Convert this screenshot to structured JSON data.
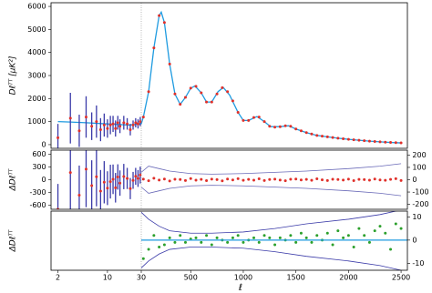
{
  "chart_data": {
    "type": "spectrum-panels",
    "xlabel": "ℓ",
    "xlim": [
      1.6,
      2560
    ],
    "x_log_below": 30,
    "xticks": [
      2,
      10,
      30,
      500,
      1000,
      1500,
      2000,
      2500
    ],
    "panels": [
      {
        "ylabel": "Dℓᵀᵀ [μK²]",
        "ylim": [
          -160,
          6160
        ],
        "yticks": [
          0,
          1000,
          2000,
          3000,
          4000,
          5000,
          6000
        ],
        "model": {
          "color": "#1f9be0",
          "l": [
            2,
            3,
            5,
            10,
            20,
            30,
            50,
            100,
            150,
            200,
            220,
            250,
            300,
            350,
            400,
            450,
            500,
            540,
            600,
            650,
            700,
            760,
            810,
            870,
            950,
            1000,
            1050,
            1130,
            1200,
            1260,
            1350,
            1430,
            1500,
            1600,
            1700,
            1800,
            1900,
            2000,
            2100,
            2200,
            2300,
            2400,
            2500
          ],
          "values": [
            1000,
            980,
            950,
            900,
            850,
            900,
            1200,
            2300,
            4200,
            5600,
            5750,
            5300,
            3500,
            2200,
            1750,
            2050,
            2450,
            2550,
            2250,
            1850,
            1850,
            2300,
            2480,
            2150,
            1400,
            1050,
            1050,
            1220,
            1000,
            780,
            780,
            820,
            680,
            520,
            400,
            340,
            280,
            230,
            190,
            150,
            120,
            95,
            75
          ]
        },
        "low": {
          "color": "#3a3aa8",
          "point_color": "#e0302a",
          "l": [
            2,
            3,
            4,
            5,
            6,
            7,
            8,
            9,
            10,
            11,
            12,
            13,
            14,
            15,
            17,
            19,
            21,
            23,
            25,
            27,
            29
          ],
          "values": [
            300,
            1150,
            600,
            1200,
            800,
            1000,
            650,
            850,
            700,
            850,
            900,
            700,
            950,
            800,
            950,
            900,
            650,
            850,
            950,
            900,
            1000
          ],
          "errors": [
            600,
            1100,
            700,
            900,
            600,
            700,
            500,
            500,
            400,
            400,
            350,
            350,
            300,
            300,
            300,
            250,
            250,
            200,
            200,
            200,
            200
          ]
        },
        "high": {
          "color": "#e0302a",
          "l": [
            50,
            100,
            150,
            200,
            250,
            300,
            350,
            400,
            450,
            500,
            550,
            600,
            650,
            700,
            750,
            800,
            850,
            900,
            950,
            1000,
            1050,
            1100,
            1150,
            1200,
            1250,
            1300,
            1350,
            1400,
            1450,
            1500,
            1550,
            1600,
            1650,
            1700,
            1750,
            1800,
            1850,
            1900,
            1950,
            2000,
            2050,
            2100,
            2150,
            2200,
            2250,
            2300,
            2350,
            2400,
            2450,
            2500
          ],
          "values": [
            1200,
            2300,
            4200,
            5600,
            5300,
            3500,
            2200,
            1750,
            2050,
            2450,
            2530,
            2250,
            1850,
            1850,
            2200,
            2470,
            2300,
            1900,
            1400,
            1050,
            1050,
            1180,
            1200,
            1000,
            800,
            760,
            780,
            820,
            800,
            680,
            600,
            520,
            460,
            400,
            370,
            340,
            310,
            280,
            255,
            230,
            210,
            190,
            170,
            150,
            135,
            120,
            108,
            95,
            85,
            75
          ]
        }
      },
      {
        "ylabel": "ΔDℓᵀᵀ",
        "ylim": [
          -700,
          700
        ],
        "yticks": [
          -600,
          -300,
          0,
          300,
          600
        ],
        "y2lim": [
          -240,
          240
        ],
        "y2ticks": [
          -200,
          -100,
          0,
          100,
          200
        ],
        "low": {
          "color": "#3a3aa8",
          "point_color": "#e0302a",
          "l": [
            2,
            3,
            4,
            5,
            6,
            7,
            8,
            9,
            10,
            11,
            12,
            13,
            14,
            15,
            17,
            19,
            21,
            23,
            25,
            27,
            29
          ],
          "values": [
            -700,
            170,
            -365,
            250,
            -140,
            70,
            -270,
            -60,
            -200,
            -45,
            10,
            -190,
            65,
            -80,
            75,
            30,
            -210,
            -15,
            80,
            30,
            110
          ],
          "errors": [
            600,
            1100,
            700,
            900,
            600,
            700,
            500,
            500,
            400,
            400,
            350,
            350,
            300,
            300,
            300,
            250,
            250,
            200,
            200,
            200,
            200
          ]
        },
        "high": {
          "color": "#e0302a",
          "axis": "y2",
          "l": [
            50,
            100,
            150,
            200,
            250,
            300,
            350,
            400,
            450,
            500,
            550,
            600,
            650,
            700,
            750,
            800,
            850,
            900,
            950,
            1000,
            1050,
            1100,
            1150,
            1200,
            1250,
            1300,
            1350,
            1400,
            1450,
            1500,
            1550,
            1600,
            1650,
            1700,
            1750,
            1800,
            1850,
            1900,
            1950,
            2000,
            2050,
            2100,
            2150,
            2200,
            2250,
            2300,
            2350,
            2400,
            2450,
            2500
          ],
          "values": [
            5,
            -8,
            12,
            -3,
            6,
            -10,
            4,
            2,
            -6,
            9,
            -4,
            3,
            -7,
            5,
            1,
            -9,
            6,
            -2,
            8,
            -5,
            3,
            -4,
            7,
            -6,
            2,
            5,
            -3,
            -8,
            4,
            6,
            -2,
            3,
            -5,
            7,
            -1,
            -6,
            4,
            2,
            -3,
            5,
            -7,
            3,
            1,
            -4,
            6,
            -2,
            -5,
            3,
            8,
            -6
          ]
        },
        "envelope": {
          "color": "#6a6ab8",
          "axis": "y2",
          "l": [
            30,
            100,
            200,
            300,
            500,
            700,
            1000,
            1300,
            1600,
            2000,
            2300,
            2500
          ],
          "upper": [
            60,
            110,
            90,
            70,
            50,
            45,
            50,
            60,
            70,
            90,
            110,
            130
          ],
          "lower": [
            -60,
            -110,
            -90,
            -70,
            -50,
            -45,
            -50,
            -60,
            -70,
            -90,
            -110,
            -130
          ]
        }
      },
      {
        "ylabel": "ΔDℓᵀᵀ",
        "ylim": [
          -13,
          12.5
        ],
        "y2ticks": [
          -10,
          0,
          10
        ],
        "high": {
          "color": "#2ca02c",
          "axis": "y2",
          "l": [
            50,
            100,
            150,
            200,
            250,
            300,
            350,
            400,
            450,
            500,
            550,
            600,
            650,
            700,
            750,
            800,
            850,
            900,
            950,
            1000,
            1050,
            1100,
            1150,
            1200,
            1250,
            1300,
            1350,
            1400,
            1450,
            1500,
            1550,
            1600,
            1650,
            1700,
            1750,
            1800,
            1850,
            1900,
            1950,
            2000,
            2050,
            2100,
            2150,
            2200,
            2250,
            2300,
            2350,
            2400,
            2450,
            2500
          ],
          "values": [
            -8,
            -4,
            2,
            -3,
            -2,
            1,
            -1,
            2,
            -1,
            0.5,
            1,
            -1,
            2,
            -2,
            1,
            0,
            -1,
            1,
            2,
            -1,
            0,
            1,
            -1,
            2,
            1,
            -2,
            1,
            0,
            2,
            -1,
            3,
            1,
            -1,
            2,
            0,
            3,
            -2,
            4,
            1,
            2,
            -3,
            5,
            2,
            -1,
            4,
            6,
            3,
            -4,
            7,
            5
          ]
        },
        "envelope": {
          "color": "#3a3aa8",
          "axis": "y2",
          "l": [
            30,
            100,
            200,
            300,
            500,
            700,
            1000,
            1300,
            1600,
            2000,
            2300,
            2500
          ],
          "upper": [
            12,
            9,
            6,
            4,
            3,
            3,
            3.5,
            5,
            7,
            9,
            11,
            13
          ],
          "lower": [
            -12,
            -9,
            -6,
            -4,
            -3,
            -3,
            -3.5,
            -5,
            -7,
            -9,
            -11,
            -13
          ]
        }
      }
    ]
  }
}
